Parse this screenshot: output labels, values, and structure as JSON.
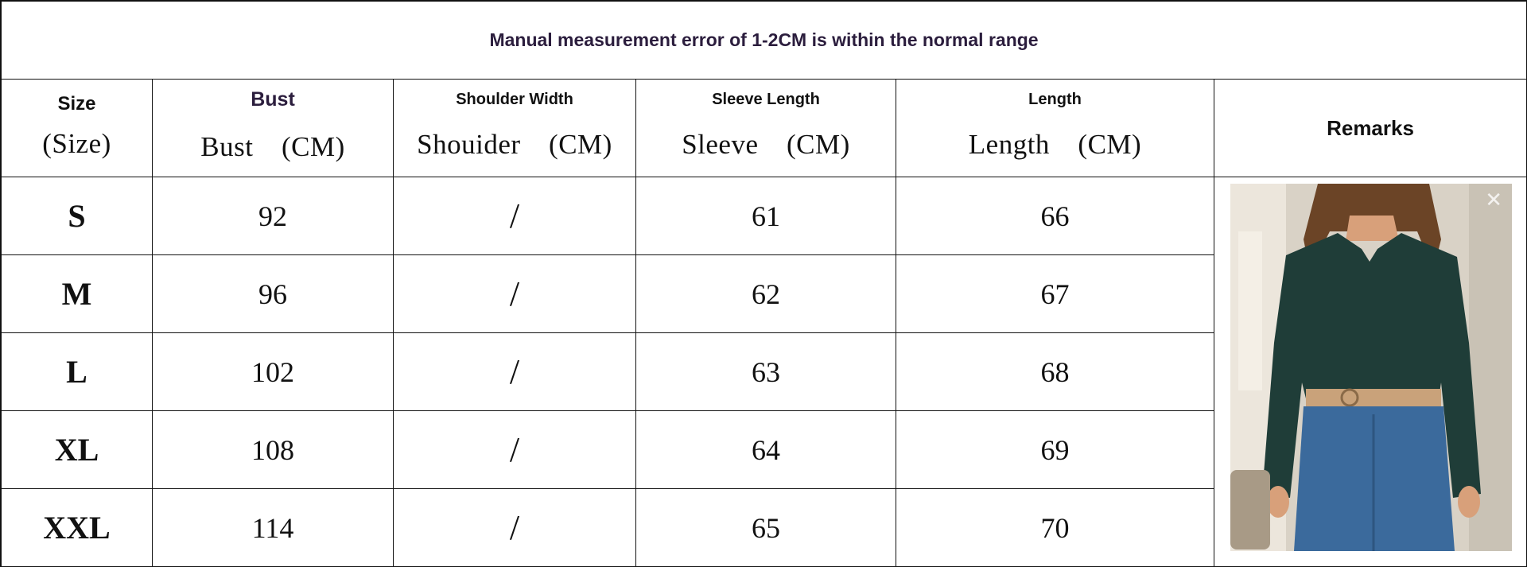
{
  "note": "Manual measurement error of 1-2CM is within the normal range",
  "headers": [
    {
      "en": "Size",
      "cn": "(Size)"
    },
    {
      "en": "Bust",
      "cn": "Bust　(CM)"
    },
    {
      "en": "Shoulder Width",
      "cn": "Shouider　(CM)"
    },
    {
      "en": "Sleeve Length",
      "cn": "Sleeve　(CM)"
    },
    {
      "en": "Length",
      "cn": "Length　(CM)"
    }
  ],
  "remarks_label": "Remarks",
  "rows": [
    {
      "size": "S",
      "bust": "92",
      "shoulder": "/",
      "sleeve": "61",
      "length": "66"
    },
    {
      "size": "M",
      "bust": "96",
      "shoulder": "/",
      "sleeve": "62",
      "length": "67"
    },
    {
      "size": "L",
      "bust": "102",
      "shoulder": "/",
      "sleeve": "63",
      "length": "68"
    },
    {
      "size": "XL",
      "bust": "108",
      "shoulder": "/",
      "sleeve": "64",
      "length": "69"
    },
    {
      "size": "XXL",
      "bust": "114",
      "shoulder": "/",
      "sleeve": "65",
      "length": "70"
    }
  ],
  "colors": {
    "top": "#1f3d38",
    "jeans": "#3b6a9c",
    "belt": "#c9a27a",
    "background": "#d9d2c6",
    "note_text": "#2b1d3d"
  }
}
